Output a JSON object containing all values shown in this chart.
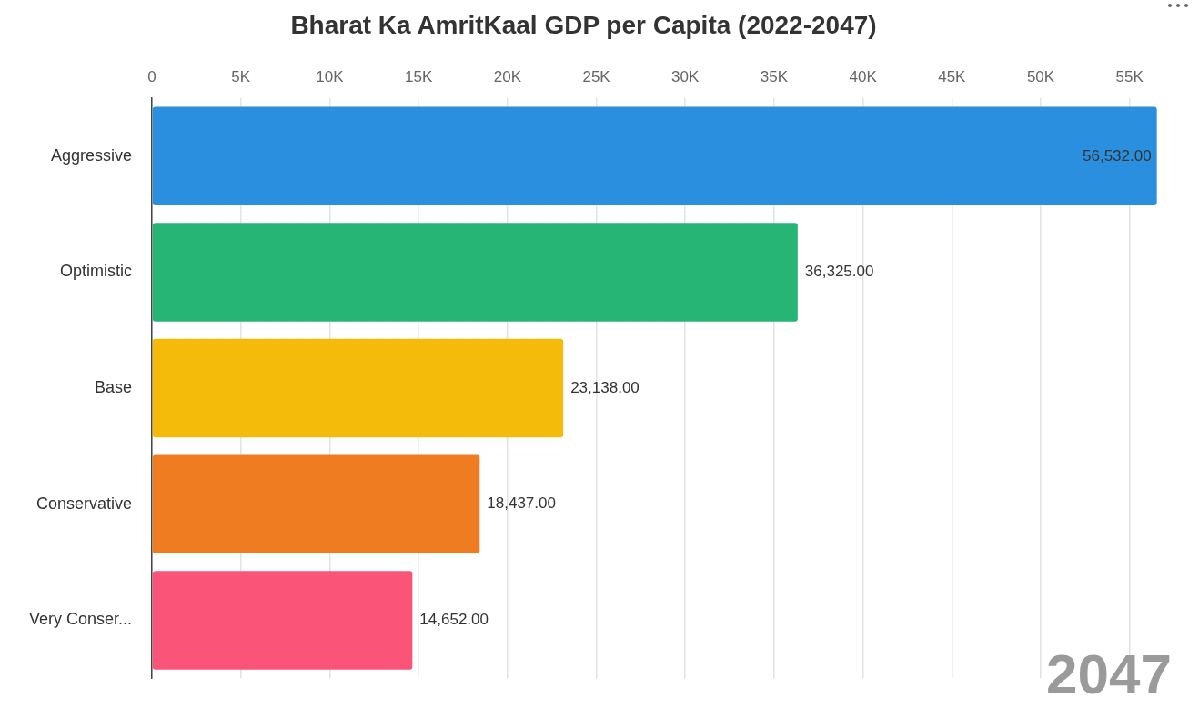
{
  "chart_data": {
    "type": "bar",
    "orientation": "horizontal",
    "title": "Bharat Ka AmritKaal GDP per Capita (2022-2047)",
    "categories": [
      "Aggressive",
      "Optimistic",
      "Base",
      "Conservative",
      "Very Conser..."
    ],
    "values": [
      56532,
      36325,
      23138,
      18437,
      14652
    ],
    "colors": [
      "#2a8fdf",
      "#26b574",
      "#f5bb0b",
      "#f07c22",
      "#fb5479"
    ],
    "value_labels": [
      "56,532.00",
      "36,325.00",
      "23,138.00",
      "18,437.00",
      "14,652.00"
    ],
    "xlim": [
      0,
      56600
    ],
    "xticks": [
      0,
      {
        "value": 5000,
        "label": "5K"
      },
      {
        "value": 10000,
        "label": "10K"
      },
      {
        "value": 15000,
        "label": "15K"
      },
      {
        "value": 20000,
        "label": "20K"
      },
      {
        "value": 25000,
        "label": "25K"
      },
      {
        "value": 30000,
        "label": "30K"
      },
      {
        "value": 35000,
        "label": "35K"
      },
      {
        "value": 40000,
        "label": "40K"
      },
      {
        "value": 45000,
        "label": "45K"
      },
      {
        "value": 50000,
        "label": "50K"
      },
      {
        "value": 55000,
        "label": "55K"
      }
    ],
    "grid": "x",
    "legend": false,
    "annotations": [
      "2047"
    ]
  }
}
